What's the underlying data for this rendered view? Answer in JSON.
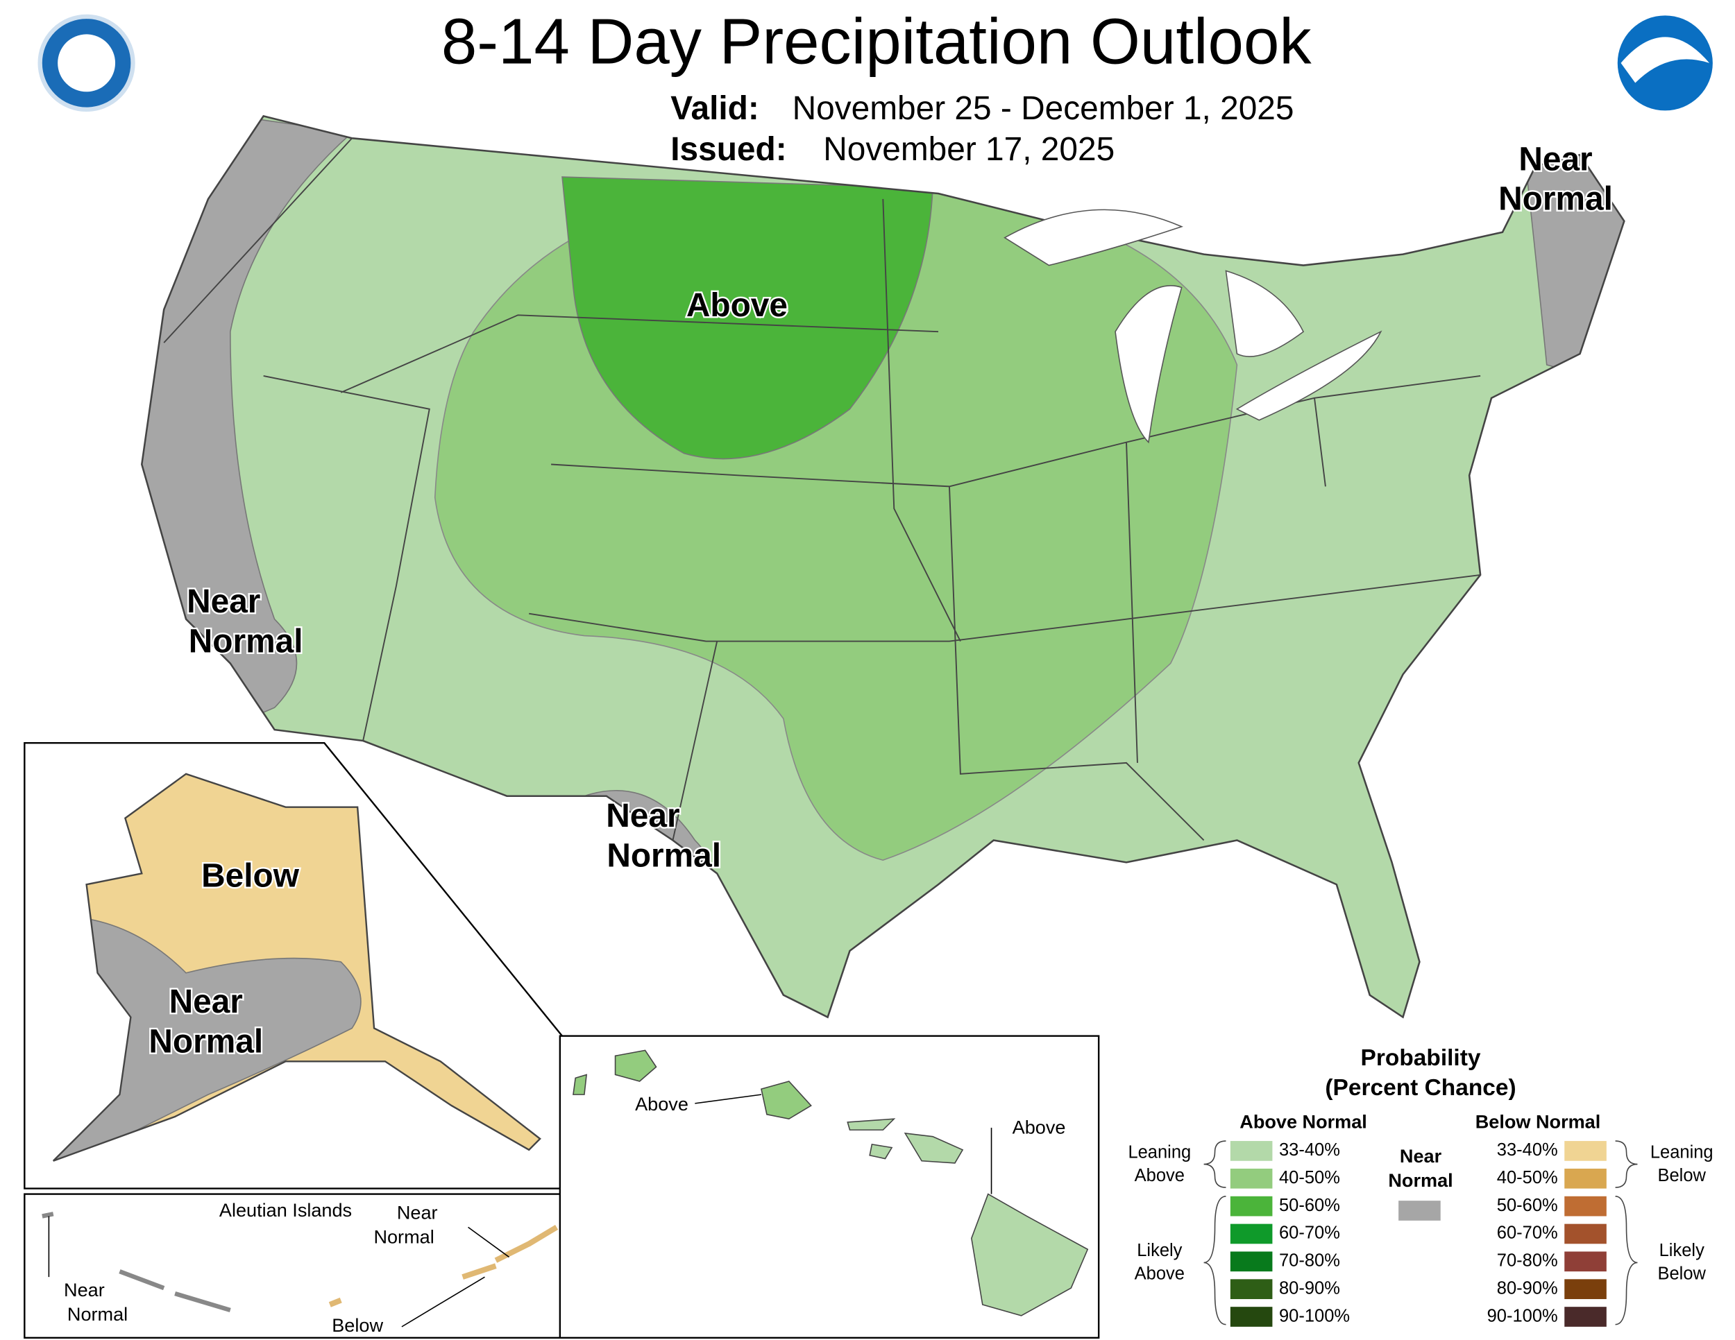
{
  "header": {
    "title": "8-14 Day Precipitation Outlook",
    "valid_label": "Valid:",
    "valid": "November 25 - December 1, 2025",
    "issued_label": "Issued:",
    "issued": "November 17, 2025"
  },
  "map_labels": {
    "conus_above": "Above",
    "west_near": [
      "Near",
      "Normal"
    ],
    "northeast_near": [
      "Near",
      "Normal"
    ],
    "texas_near": [
      "Near",
      "Normal"
    ],
    "alaska_below": "Below",
    "alaska_near": [
      "Near",
      "Normal"
    ],
    "aleutian_title": "Aleutian Islands",
    "aleutian_near_east": [
      "Near",
      "Normal"
    ],
    "aleutian_near_west": [
      "Near",
      "Normal"
    ],
    "aleutian_below": "Below",
    "hawaii_above_west": "Above",
    "hawaii_above_east": "Above"
  },
  "legend": {
    "title": "Probability",
    "subtitle": "(Percent Chance)",
    "above_header": "Above Normal",
    "below_header": "Below Normal",
    "near": [
      "Near",
      "Normal"
    ],
    "near_color": "#a6a6a6",
    "leaning_above": [
      "Leaning",
      "Above"
    ],
    "likely_above": [
      "Likely",
      "Above"
    ],
    "leaning_below": [
      "Leaning",
      "Below"
    ],
    "likely_below": [
      "Likely",
      "Below"
    ],
    "above": [
      {
        "label": "33-40%",
        "color": "#b3d9a9"
      },
      {
        "label": "40-50%",
        "color": "#93cc7e"
      },
      {
        "label": "50-60%",
        "color": "#4bb43a"
      },
      {
        "label": "60-70%",
        "color": "#0f9a2a"
      },
      {
        "label": "70-80%",
        "color": "#087a1c"
      },
      {
        "label": "80-90%",
        "color": "#2e5e16"
      },
      {
        "label": "90-100%",
        "color": "#25480f"
      }
    ],
    "below": [
      {
        "label": "33-40%",
        "color": "#f0d493"
      },
      {
        "label": "40-50%",
        "color": "#d9a750"
      },
      {
        "label": "50-60%",
        "color": "#bf6d33"
      },
      {
        "label": "60-70%",
        "color": "#a3522c"
      },
      {
        "label": "70-80%",
        "color": "#8f3f37"
      },
      {
        "label": "80-90%",
        "color": "#7a3f0c"
      },
      {
        "label": "90-100%",
        "color": "#4a2a2a"
      }
    ]
  }
}
